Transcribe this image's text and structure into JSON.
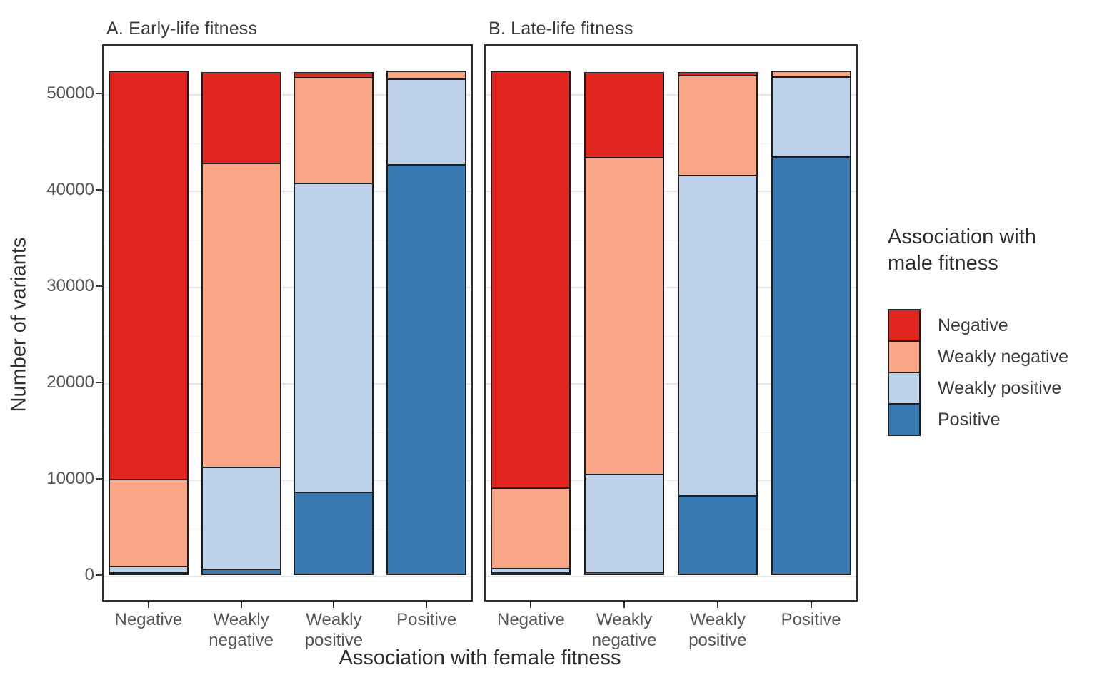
{
  "chart_data": {
    "type": "bar",
    "stacked": true,
    "xlabel": "Association with female fitness",
    "ylabel": "Number of variants",
    "ylim": [
      0,
      55000
    ],
    "yticks": [
      0,
      10000,
      20000,
      30000,
      40000,
      50000
    ],
    "minor_ticks": [
      5000,
      15000,
      25000,
      35000,
      45000
    ],
    "grid": true,
    "legend_position": "right",
    "categories": [
      "Negative",
      "Weakly negative",
      "Weakly positive",
      "Positive"
    ],
    "category_label_lines": [
      [
        "Negative"
      ],
      [
        "Weakly",
        "negative"
      ],
      [
        "Weakly",
        "positive"
      ],
      [
        "Positive"
      ]
    ],
    "panels": [
      {
        "title": "A. Early-life fitness",
        "series": [
          {
            "name": "Negative",
            "color": "#e0241e",
            "values": [
              42500,
              9600,
              700,
              0
            ]
          },
          {
            "name": "Weakly negative",
            "color": "#f9a687",
            "values": [
              9200,
              31700,
              11100,
              1000
            ]
          },
          {
            "name": "Weakly positive",
            "color": "#bdd2ea",
            "values": [
              800,
              10700,
              32200,
              9000
            ]
          },
          {
            "name": "Positive",
            "color": "#3879b1",
            "values": [
              200,
              700,
              8700,
              42700
            ]
          }
        ]
      },
      {
        "title": "B. Late-life fitness",
        "series": [
          {
            "name": "Negative",
            "color": "#e0241e",
            "values": [
              43400,
              9000,
              500,
              0
            ]
          },
          {
            "name": "Weakly negative",
            "color": "#f9a687",
            "values": [
              8500,
              33000,
              10500,
              800
            ]
          },
          {
            "name": "Weakly positive",
            "color": "#bdd2ea",
            "values": [
              600,
              10300,
              33400,
              8400
            ]
          },
          {
            "name": "Positive",
            "color": "#3879b1",
            "values": [
              200,
              400,
              8300,
              43500
            ]
          }
        ]
      }
    ],
    "legend": {
      "title_lines": [
        "Association with",
        "male fitness"
      ],
      "entries": [
        {
          "label": "Negative",
          "color": "#e0241e"
        },
        {
          "label": "Weakly negative",
          "color": "#f9a687"
        },
        {
          "label": "Weakly positive",
          "color": "#bdd2ea"
        },
        {
          "label": "Positive",
          "color": "#3879b1"
        }
      ]
    },
    "colors": {
      "bar_outline": "#1f1f1f",
      "panel_border": "#2e2e2e",
      "grid_major": "#e7e7e7",
      "grid_minor": "#f3f3f3",
      "axis_text": "#555555",
      "title_text": "#2e2e2e"
    }
  }
}
